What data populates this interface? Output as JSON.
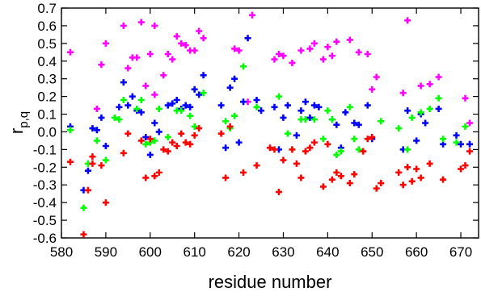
{
  "chart_data": {
    "type": "scatter",
    "xlabel": "residue number",
    "ylabel": "r",
    "ylabel_sub": "p,q",
    "xlim": [
      580,
      674
    ],
    "ylim": [
      -0.6,
      0.7
    ],
    "xticks": [
      580,
      590,
      600,
      610,
      620,
      630,
      640,
      650,
      660,
      670
    ],
    "xtick_labels": [
      "580",
      "590",
      "600",
      "610",
      "620",
      "630",
      "640",
      "650",
      "660",
      "670"
    ],
    "yticks": [
      -0.6,
      -0.5,
      -0.4,
      -0.3,
      -0.2,
      -0.1,
      0.0,
      0.1,
      0.2,
      0.3,
      0.4,
      0.5,
      0.6,
      0.7
    ],
    "ytick_labels": [
      "-0.6",
      "-0.5",
      "-0.4",
      "-0.3",
      "-0.2",
      "-0.1",
      "0.0",
      "0.1",
      "0.2",
      "0.3",
      "0.4",
      "0.5",
      "0.6",
      "0.7"
    ],
    "grid": false,
    "marker": "plus",
    "series": [
      {
        "color": "#ff00ff",
        "points": [
          [
            582,
            0.45
          ],
          [
            588,
            0.13
          ],
          [
            589,
            0.38
          ],
          [
            590,
            0.5
          ],
          [
            594,
            0.6
          ],
          [
            595,
            0.36
          ],
          [
            596,
            0.42
          ],
          [
            597,
            0.42
          ],
          [
            598,
            0.62
          ],
          [
            599,
            0.26
          ],
          [
            600,
            0.44
          ],
          [
            601,
            0.6
          ],
          [
            601,
            0.21
          ],
          [
            603,
            0.32
          ],
          [
            604,
            0.44
          ],
          [
            605,
            0.41
          ],
          [
            606,
            0.54
          ],
          [
            607,
            0.5
          ],
          [
            608,
            0.49
          ],
          [
            609,
            0.46
          ],
          [
            610,
            0.46
          ],
          [
            611,
            0.57
          ],
          [
            612,
            0.53
          ],
          [
            619,
            0.47
          ],
          [
            620,
            0.46
          ],
          [
            622,
            0.17
          ],
          [
            623,
            0.66
          ],
          [
            628,
            0.41
          ],
          [
            629,
            0.44
          ],
          [
            630,
            0.43
          ],
          [
            632,
            0.39
          ],
          [
            634,
            0.46
          ],
          [
            636,
            0.47
          ],
          [
            637,
            0.5
          ],
          [
            639,
            0.41
          ],
          [
            640,
            0.48
          ],
          [
            641,
            0.43
          ],
          [
            642,
            0.51
          ],
          [
            645,
            0.52
          ],
          [
            647,
            0.45
          ],
          [
            649,
            0.44
          ],
          [
            650,
            0.24
          ],
          [
            651,
            0.31
          ],
          [
            657,
            0.22
          ],
          [
            658,
            0.63
          ],
          [
            661,
            0.26
          ],
          [
            663,
            0.27
          ],
          [
            665,
            0.31
          ],
          [
            671,
            0.19
          ],
          [
            672,
            0.05
          ]
        ]
      },
      {
        "color": "#0000ff",
        "points": [
          [
            582,
            0.03
          ],
          [
            585,
            -0.33
          ],
          [
            586,
            -0.22
          ],
          [
            587,
            0.02
          ],
          [
            588,
            0.01
          ],
          [
            589,
            0.08
          ],
          [
            590,
            -0.08
          ],
          [
            593,
            0.14
          ],
          [
            594,
            0.28
          ],
          [
            595,
            0.15
          ],
          [
            596,
            0.2
          ],
          [
            597,
            0.12
          ],
          [
            598,
            0.11
          ],
          [
            599,
            -0.03
          ],
          [
            600,
            -0.13
          ],
          [
            601,
            0.05
          ],
          [
            602,
            0.0
          ],
          [
            604,
            0.15
          ],
          [
            605,
            0.16
          ],
          [
            606,
            0.18
          ],
          [
            607,
            0.13
          ],
          [
            608,
            0.15
          ],
          [
            609,
            0.14
          ],
          [
            610,
            0.24
          ],
          [
            611,
            0.21
          ],
          [
            612,
            0.32
          ],
          [
            616,
            0.15
          ],
          [
            617,
            -0.09
          ],
          [
            618,
            0.25
          ],
          [
            619,
            0.3
          ],
          [
            620,
            -0.06
          ],
          [
            621,
            0.17
          ],
          [
            622,
            0.53
          ],
          [
            624,
            0.18
          ],
          [
            625,
            0.12
          ],
          [
            628,
            0.14
          ],
          [
            629,
            -0.1
          ],
          [
            630,
            0.08
          ],
          [
            631,
            0.15
          ],
          [
            633,
            -0.02
          ],
          [
            634,
            0.12
          ],
          [
            635,
            0.17
          ],
          [
            636,
            0.08
          ],
          [
            637,
            0.15
          ],
          [
            638,
            0.14
          ],
          [
            641,
            0.07
          ],
          [
            642,
            0.04
          ],
          [
            643,
            -0.09
          ],
          [
            644,
            0.11
          ],
          [
            646,
            0.05
          ],
          [
            647,
            0.04
          ],
          [
            649,
            0.15
          ],
          [
            650,
            -0.04
          ],
          [
            657,
            -0.1
          ],
          [
            658,
            0.12
          ],
          [
            660,
            -0.05
          ],
          [
            661,
            0.1
          ],
          [
            662,
            0.05
          ],
          [
            665,
            0.13
          ],
          [
            666,
            -0.07
          ],
          [
            669,
            -0.02
          ],
          [
            670,
            -0.07
          ],
          [
            672,
            -0.07
          ]
        ]
      },
      {
        "color": "#00ff00",
        "points": [
          [
            582,
            0.01
          ],
          [
            585,
            -0.43
          ],
          [
            586,
            -0.18
          ],
          [
            588,
            -0.05
          ],
          [
            590,
            -0.16
          ],
          [
            592,
            0.08
          ],
          [
            593,
            0.07
          ],
          [
            594,
            0.18
          ],
          [
            597,
            0.13
          ],
          [
            598,
            0.18
          ],
          [
            599,
            -0.07
          ],
          [
            600,
            -0.06
          ],
          [
            601,
            -0.05
          ],
          [
            602,
            0.13
          ],
          [
            604,
            -0.03
          ],
          [
            606,
            0.12
          ],
          [
            607,
            0.12
          ],
          [
            609,
            0.09
          ],
          [
            610,
            0.03
          ],
          [
            612,
            0.22
          ],
          [
            617,
            0.06
          ],
          [
            618,
            0.02
          ],
          [
            619,
            0.09
          ],
          [
            621,
            0.37
          ],
          [
            624,
            0.14
          ],
          [
            629,
            0.2
          ],
          [
            631,
            -0.01
          ],
          [
            632,
            -0.1
          ],
          [
            634,
            0.07
          ],
          [
            635,
            0.07
          ],
          [
            637,
            0.07
          ],
          [
            639,
            -0.04
          ],
          [
            640,
            0.12
          ],
          [
            641,
            0.07
          ],
          [
            642,
            -0.13
          ],
          [
            643,
            -0.11
          ],
          [
            645,
            0.14
          ],
          [
            646,
            -0.04
          ],
          [
            647,
            -0.1
          ],
          [
            652,
            0.06
          ],
          [
            656,
            0.02
          ],
          [
            658,
            -0.1
          ],
          [
            659,
            0.08
          ],
          [
            661,
            0.11
          ],
          [
            663,
            0.13
          ],
          [
            665,
            0.19
          ],
          [
            666,
            -0.04
          ],
          [
            669,
            -0.06
          ],
          [
            671,
            0.03
          ]
        ]
      },
      {
        "color": "#ff0000",
        "points": [
          [
            582,
            -0.17
          ],
          [
            585,
            -0.58
          ],
          [
            586,
            -0.33
          ],
          [
            587,
            -0.14
          ],
          [
            587,
            -0.18
          ],
          [
            589,
            -0.19
          ],
          [
            590,
            -0.4
          ],
          [
            594,
            -0.12
          ],
          [
            595,
            -0.01
          ],
          [
            598,
            -0.05
          ],
          [
            599,
            -0.26
          ],
          [
            600,
            -0.04
          ],
          [
            601,
            -0.25
          ],
          [
            602,
            -0.23
          ],
          [
            603,
            -0.1
          ],
          [
            604,
            -0.11
          ],
          [
            605,
            -0.06
          ],
          [
            606,
            -0.08
          ],
          [
            607,
            -0.01
          ],
          [
            608,
            -0.06
          ],
          [
            609,
            -0.07
          ],
          [
            610,
            -0.02
          ],
          [
            611,
            0.02
          ],
          [
            616,
            -0.01
          ],
          [
            617,
            -0.26
          ],
          [
            618,
            0.03
          ],
          [
            621,
            -0.23
          ],
          [
            624,
            -0.19
          ],
          [
            627,
            -0.09
          ],
          [
            628,
            -0.1
          ],
          [
            629,
            -0.34
          ],
          [
            630,
            -0.16
          ],
          [
            632,
            -0.1
          ],
          [
            633,
            -0.18
          ],
          [
            634,
            -0.26
          ],
          [
            635,
            -0.11
          ],
          [
            636,
            -0.09
          ],
          [
            637,
            -0.06
          ],
          [
            639,
            -0.31
          ],
          [
            640,
            -0.07
          ],
          [
            641,
            -0.27
          ],
          [
            642,
            -0.23
          ],
          [
            643,
            -0.25
          ],
          [
            645,
            -0.29
          ],
          [
            646,
            -0.24
          ],
          [
            648,
            -0.11
          ],
          [
            649,
            -0.04
          ],
          [
            650,
            -0.03
          ],
          [
            651,
            -0.32
          ],
          [
            652,
            -0.29
          ],
          [
            656,
            -0.23
          ],
          [
            657,
            -0.3
          ],
          [
            658,
            -0.2
          ],
          [
            659,
            -0.28
          ],
          [
            660,
            -0.21
          ],
          [
            661,
            -0.26
          ],
          [
            663,
            -0.18
          ],
          [
            666,
            -0.27
          ],
          [
            670,
            -0.21
          ],
          [
            671,
            -0.19
          ],
          [
            672,
            -0.11
          ]
        ]
      }
    ]
  }
}
